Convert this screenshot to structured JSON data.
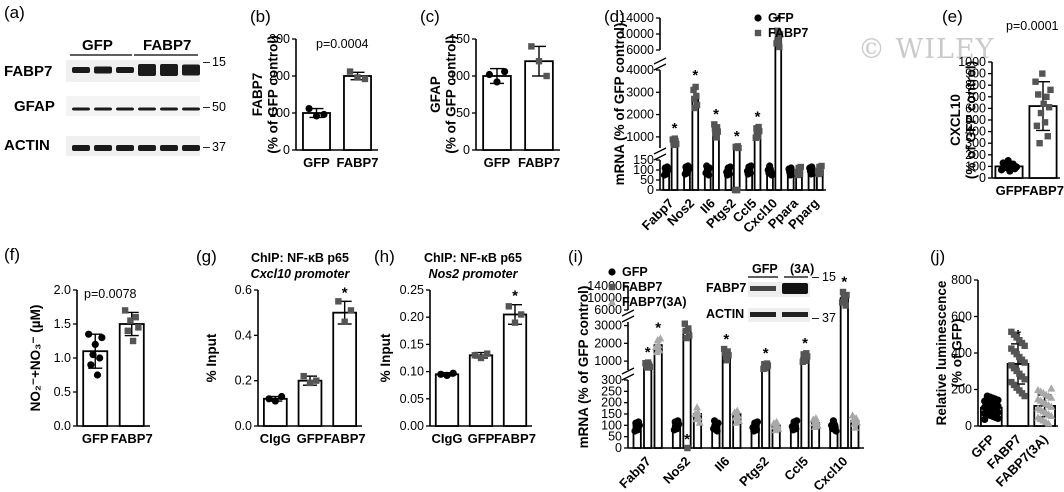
{
  "watermark": "© WILEY",
  "colors": {
    "gfp": "#000000",
    "fabp7": "#555555",
    "fabp7_3a": "#a8a8a8",
    "band": "#1a1a1a"
  },
  "panel_a": {
    "label": "(a)",
    "lanes": [
      "GFP",
      "FABP7"
    ],
    "rows": [
      "FABP7",
      "GFAP",
      "ACTIN"
    ],
    "markers": [
      "15",
      "50",
      "37"
    ]
  },
  "panel_i_blot": {
    "lanes": [
      "GFP",
      "(3A)"
    ],
    "rows": [
      "FABP7",
      "ACTIN"
    ],
    "markers": [
      "15",
      "37"
    ]
  },
  "chart_data": [
    {
      "id": "b",
      "panel_label": "(b)",
      "type": "bar",
      "categories": [
        "GFP",
        "FABP7"
      ],
      "values": [
        100,
        200
      ],
      "errors": [
        12,
        10
      ],
      "ylabel": "FABP7\n(% of GFP control)",
      "ylim": [
        0,
        300
      ],
      "yticks": [
        0,
        100,
        200,
        300
      ],
      "annotation": "p=0.0004",
      "points": [
        [
          112,
          92,
          96
        ],
        [
          212,
          196,
          192
        ]
      ]
    },
    {
      "id": "c",
      "panel_label": "(c)",
      "type": "bar",
      "categories": [
        "GFP",
        "FABP7"
      ],
      "values": [
        100,
        120
      ],
      "errors": [
        10,
        20
      ],
      "ylabel": "GFAP\n(% of GFP control)",
      "ylim": [
        0,
        150
      ],
      "yticks": [
        0,
        50,
        100,
        150
      ],
      "points": [
        [
          102,
          92,
          106
        ],
        [
          140,
          120,
          100
        ]
      ]
    },
    {
      "id": "d",
      "panel_label": "(d)",
      "type": "bar",
      "y_broken": true,
      "categories": [
        "Fabp7",
        "Nos2",
        "Il6",
        "Ptgs2",
        "Ccl5",
        "Cxcl10",
        "Ppara",
        "Pparg"
      ],
      "series": [
        {
          "name": "GFP",
          "values": [
            100,
            100,
            100,
            100,
            100,
            100,
            100,
            100
          ]
        },
        {
          "name": "FABP7",
          "values": [
            800,
            2700,
            1300,
            500,
            1200,
            9000,
            100,
            100
          ]
        }
      ],
      "significant": [
        true,
        true,
        true,
        true,
        true,
        true,
        false,
        false
      ],
      "ylabel": "mRNA (% of GFP control)",
      "yticks_low": [
        0,
        50,
        100,
        150
      ],
      "yticks_mid": [
        1000,
        2000,
        3000,
        4000
      ],
      "yticks_high": [
        6000,
        10000,
        14000
      ]
    },
    {
      "id": "e",
      "panel_label": "(e)",
      "type": "bar",
      "categories": [
        "GFP",
        "FABP7"
      ],
      "values": [
        100,
        620
      ],
      "errors": [
        25,
        210
      ],
      "ylabel": "CXCL10\n(% of GFP control)",
      "ylim": [
        0,
        1000
      ],
      "yticks": [
        0,
        100,
        200,
        300,
        400,
        500,
        600,
        700,
        800,
        900,
        1000
      ],
      "annotation": "p=0.0001",
      "points": [
        [
          70,
          130,
          90,
          110,
          150,
          60,
          100,
          120,
          80,
          95
        ],
        [
          830,
          450,
          720,
          300,
          560,
          900,
          640,
          480,
          700,
          360,
          610,
          760
        ]
      ]
    },
    {
      "id": "f",
      "panel_label": "(f)",
      "type": "bar",
      "categories": [
        "GFP",
        "FABP7"
      ],
      "values": [
        1.1,
        1.5
      ],
      "errors": [
        0.25,
        0.17
      ],
      "ylabel": "NO2-+NO3- (µM)",
      "ylim": [
        0,
        2.0
      ],
      "yticks": [
        0,
        0.5,
        1.0,
        1.5,
        2.0
      ],
      "annotation": "p=0.0078",
      "points": [
        [
          1.35,
          0.9,
          1.05,
          1.2,
          0.75,
          1.0,
          1.3
        ],
        [
          1.7,
          1.4,
          1.55,
          1.25,
          1.6,
          1.45
        ]
      ]
    },
    {
      "id": "g",
      "panel_label": "(g)",
      "type": "bar",
      "categories": [
        "CIgG",
        "GFP",
        "FABP7"
      ],
      "values": [
        0.12,
        0.2,
        0.5
      ],
      "errors": [
        0.01,
        0.02,
        0.05
      ],
      "ylabel": "% Input",
      "title": "ChIP: NF-κB p65",
      "subtitle": "Cxcl10 promoter",
      "ylim": [
        0,
        0.6
      ],
      "yticks": [
        0,
        0.2,
        0.4,
        0.6
      ],
      "significant": [
        false,
        false,
        true
      ],
      "points": [
        [
          0.12,
          0.11,
          0.13
        ],
        [
          0.22,
          0.19,
          0.2
        ],
        [
          0.55,
          0.46,
          0.51
        ]
      ]
    },
    {
      "id": "h",
      "panel_label": "(h)",
      "type": "bar",
      "categories": [
        "CIgG",
        "GFP",
        "FABP7"
      ],
      "values": [
        0.095,
        0.13,
        0.205
      ],
      "errors": [
        0.003,
        0.005,
        0.018
      ],
      "ylabel": "% Input",
      "title": "ChIP: NF-κB p65",
      "subtitle": "Nos2 promoter",
      "ylim": [
        0,
        0.25
      ],
      "yticks": [
        0,
        0.05,
        0.1,
        0.15,
        0.2,
        0.25
      ],
      "significant": [
        false,
        false,
        true
      ],
      "points": [
        [
          0.095,
          0.093,
          0.097
        ],
        [
          0.13,
          0.125,
          0.133
        ],
        [
          0.22,
          0.19,
          0.205
        ]
      ]
    },
    {
      "id": "i",
      "panel_label": "(i)",
      "type": "bar",
      "y_broken": true,
      "categories": [
        "Fabp7",
        "Nos2",
        "Il6",
        "Ptgs2",
        "Ccl5",
        "Cxcl10"
      ],
      "series": [
        {
          "name": "GFP",
          "values": [
            100,
            100,
            100,
            100,
            100,
            100
          ]
        },
        {
          "name": "FABP7",
          "values": [
            800,
            2700,
            1400,
            750,
            1200,
            10000
          ]
        },
        {
          "name": "FABP7(3A)",
          "values": [
            1900,
            150,
            150,
            100,
            110,
            120
          ]
        }
      ],
      "significant_fabp7": [
        true,
        true,
        true,
        true,
        true,
        true
      ],
      "significant_3a": [
        true,
        false,
        false,
        false,
        false,
        false
      ],
      "ylabel": "mRNA (% of GFP control)",
      "yticks_low": [
        0,
        50,
        100,
        150,
        200,
        250,
        300
      ],
      "yticks_mid": [
        1000,
        2000,
        3000
      ],
      "yticks_high": [
        6000,
        10000,
        14000
      ]
    },
    {
      "id": "j",
      "panel_label": "(j)",
      "type": "bar",
      "categories": [
        "GFP",
        "FABP7",
        "FABP7(3A)"
      ],
      "values": [
        100,
        340,
        110
      ],
      "errors": [
        40,
        110,
        60
      ],
      "ylabel": "Relative luminescence\n(% of GFP)",
      "ylim": [
        0,
        800
      ],
      "yticks": [
        0,
        200,
        400,
        600,
        800
      ],
      "significant": [
        false,
        true,
        false
      ]
    }
  ]
}
